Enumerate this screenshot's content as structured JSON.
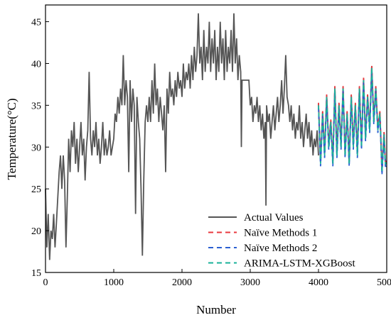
{
  "chart_data": {
    "type": "line",
    "title": "",
    "xlabel": "Number",
    "ylabel": "Temperature(°C)",
    "xlim": [
      0,
      5000
    ],
    "ylim": [
      15,
      47
    ],
    "x_ticks": [
      0,
      1000,
      2000,
      3000,
      4000,
      5000
    ],
    "y_ticks": [
      15,
      20,
      25,
      30,
      35,
      40,
      45
    ],
    "grid": false,
    "legend_position": "bottom-right",
    "series": [
      {
        "name": "Actual Values",
        "color": "#555555",
        "style": "solid",
        "points": [
          [
            0,
            25
          ],
          [
            20,
            18
          ],
          [
            40,
            22
          ],
          [
            60,
            16.5
          ],
          [
            80,
            20
          ],
          [
            100,
            19
          ],
          [
            120,
            22
          ],
          [
            140,
            18
          ],
          [
            160,
            21
          ],
          [
            180,
            24
          ],
          [
            200,
            27
          ],
          [
            220,
            29
          ],
          [
            240,
            25
          ],
          [
            260,
            29
          ],
          [
            280,
            26
          ],
          [
            300,
            18
          ],
          [
            320,
            24
          ],
          [
            340,
            31
          ],
          [
            360,
            27
          ],
          [
            380,
            32
          ],
          [
            400,
            30
          ],
          [
            420,
            33
          ],
          [
            440,
            28
          ],
          [
            460,
            31
          ],
          [
            480,
            27
          ],
          [
            500,
            30
          ],
          [
            520,
            33
          ],
          [
            540,
            29
          ],
          [
            560,
            31
          ],
          [
            580,
            26
          ],
          [
            600,
            30
          ],
          [
            620,
            32
          ],
          [
            640,
            39
          ],
          [
            660,
            31
          ],
          [
            680,
            29
          ],
          [
            700,
            32
          ],
          [
            720,
            30
          ],
          [
            740,
            33
          ],
          [
            760,
            29
          ],
          [
            780,
            31
          ],
          [
            800,
            28
          ],
          [
            820,
            30
          ],
          [
            840,
            33
          ],
          [
            860,
            29
          ],
          [
            880,
            31
          ],
          [
            900,
            29
          ],
          [
            920,
            30
          ],
          [
            940,
            32
          ],
          [
            960,
            29
          ],
          [
            980,
            30
          ],
          [
            1000,
            31
          ],
          [
            1020,
            34
          ],
          [
            1040,
            33
          ],
          [
            1060,
            36
          ],
          [
            1080,
            34
          ],
          [
            1100,
            37
          ],
          [
            1120,
            35
          ],
          [
            1140,
            41
          ],
          [
            1160,
            35
          ],
          [
            1180,
            38
          ],
          [
            1200,
            36
          ],
          [
            1220,
            27
          ],
          [
            1240,
            38
          ],
          [
            1260,
            33
          ],
          [
            1280,
            37
          ],
          [
            1300,
            35
          ],
          [
            1320,
            22
          ],
          [
            1340,
            36
          ],
          [
            1360,
            33
          ],
          [
            1380,
            31
          ],
          [
            1400,
            25
          ],
          [
            1420,
            17
          ],
          [
            1440,
            26
          ],
          [
            1460,
            33
          ],
          [
            1480,
            35
          ],
          [
            1500,
            33
          ],
          [
            1520,
            36
          ],
          [
            1540,
            33
          ],
          [
            1560,
            38
          ],
          [
            1580,
            34
          ],
          [
            1600,
            40
          ],
          [
            1620,
            35
          ],
          [
            1640,
            37
          ],
          [
            1660,
            33
          ],
          [
            1680,
            36
          ],
          [
            1700,
            34
          ],
          [
            1720,
            32
          ],
          [
            1740,
            35
          ],
          [
            1760,
            27
          ],
          [
            1780,
            37
          ],
          [
            1800,
            34
          ],
          [
            1820,
            39
          ],
          [
            1840,
            36
          ],
          [
            1860,
            37
          ],
          [
            1880,
            35
          ],
          [
            1900,
            38
          ],
          [
            1920,
            36
          ],
          [
            1940,
            39
          ],
          [
            1960,
            37
          ],
          [
            1980,
            38
          ],
          [
            2000,
            36
          ],
          [
            2020,
            40
          ],
          [
            2040,
            37
          ],
          [
            2060,
            39
          ],
          [
            2080,
            38
          ],
          [
            2100,
            40
          ],
          [
            2120,
            37
          ],
          [
            2140,
            41
          ],
          [
            2160,
            38
          ],
          [
            2180,
            42
          ],
          [
            2200,
            39
          ],
          [
            2220,
            41
          ],
          [
            2240,
            46
          ],
          [
            2260,
            40
          ],
          [
            2280,
            42
          ],
          [
            2300,
            38
          ],
          [
            2320,
            44
          ],
          [
            2340,
            39
          ],
          [
            2360,
            42
          ],
          [
            2380,
            40
          ],
          [
            2400,
            45
          ],
          [
            2420,
            39
          ],
          [
            2440,
            43
          ],
          [
            2460,
            40
          ],
          [
            2480,
            44
          ],
          [
            2500,
            38
          ],
          [
            2520,
            42
          ],
          [
            2540,
            39
          ],
          [
            2560,
            45
          ],
          [
            2580,
            40
          ],
          [
            2600,
            43
          ],
          [
            2620,
            38
          ],
          [
            2640,
            44
          ],
          [
            2660,
            39
          ],
          [
            2680,
            42
          ],
          [
            2700,
            40
          ],
          [
            2720,
            44
          ],
          [
            2740,
            39
          ],
          [
            2760,
            46
          ],
          [
            2780,
            40
          ],
          [
            2800,
            43
          ],
          [
            2820,
            38
          ],
          [
            2840,
            41
          ],
          [
            2860,
            39
          ],
          [
            2870,
            30
          ],
          [
            2880,
            38
          ],
          [
            2900,
            38
          ],
          [
            2950,
            38
          ],
          [
            2980,
            38
          ],
          [
            3000,
            35
          ],
          [
            3020,
            36
          ],
          [
            3040,
            33
          ],
          [
            3060,
            35
          ],
          [
            3080,
            34
          ],
          [
            3100,
            36
          ],
          [
            3120,
            33
          ],
          [
            3140,
            35
          ],
          [
            3160,
            32
          ],
          [
            3180,
            34
          ],
          [
            3200,
            31
          ],
          [
            3220,
            33
          ],
          [
            3230,
            23
          ],
          [
            3240,
            35
          ],
          [
            3260,
            33
          ],
          [
            3280,
            34
          ],
          [
            3300,
            31
          ],
          [
            3320,
            33
          ],
          [
            3340,
            35
          ],
          [
            3360,
            32
          ],
          [
            3380,
            34
          ],
          [
            3400,
            36
          ],
          [
            3420,
            33
          ],
          [
            3440,
            35
          ],
          [
            3460,
            38
          ],
          [
            3480,
            34
          ],
          [
            3500,
            37
          ],
          [
            3520,
            41
          ],
          [
            3540,
            36
          ],
          [
            3560,
            35
          ],
          [
            3580,
            33
          ],
          [
            3600,
            35
          ],
          [
            3620,
            32
          ],
          [
            3640,
            34
          ],
          [
            3660,
            31
          ],
          [
            3680,
            33
          ],
          [
            3700,
            32
          ],
          [
            3720,
            35
          ],
          [
            3740,
            31
          ],
          [
            3760,
            33
          ],
          [
            3780,
            30
          ],
          [
            3800,
            32
          ],
          [
            3820,
            34
          ],
          [
            3840,
            31
          ],
          [
            3860,
            33
          ],
          [
            3880,
            30
          ],
          [
            3900,
            32
          ],
          [
            3920,
            29
          ],
          [
            3940,
            31
          ],
          [
            3960,
            30
          ],
          [
            3980,
            32
          ],
          [
            4000,
            29
          ]
        ]
      },
      {
        "name": "Naïve Methods 1",
        "color": "#e8393e",
        "style": "dashed",
        "points": []
      },
      {
        "name": "Naïve Methods 2",
        "color": "#2a5fd1",
        "style": "dashed",
        "points": []
      },
      {
        "name": "ARIMA-LSTM-XGBoost",
        "color": "#19b29a",
        "style": "dashed",
        "points": [
          [
            4000,
            35
          ],
          [
            4030,
            28
          ],
          [
            4060,
            34
          ],
          [
            4090,
            29
          ],
          [
            4120,
            36
          ],
          [
            4150,
            30
          ],
          [
            4180,
            33
          ],
          [
            4210,
            28
          ],
          [
            4240,
            37
          ],
          [
            4270,
            29
          ],
          [
            4300,
            35
          ],
          [
            4330,
            30
          ],
          [
            4360,
            37
          ],
          [
            4390,
            29
          ],
          [
            4420,
            34
          ],
          [
            4450,
            28
          ],
          [
            4480,
            36
          ],
          [
            4510,
            30
          ],
          [
            4540,
            35
          ],
          [
            4570,
            29
          ],
          [
            4600,
            37
          ],
          [
            4630,
            30
          ],
          [
            4660,
            38
          ],
          [
            4690,
            31
          ],
          [
            4720,
            36
          ],
          [
            4750,
            32
          ],
          [
            4780,
            39.5
          ],
          [
            4810,
            33
          ],
          [
            4840,
            37
          ],
          [
            4870,
            32
          ],
          [
            4900,
            34
          ],
          [
            4930,
            27
          ],
          [
            4960,
            31.5
          ],
          [
            4980,
            28
          ],
          [
            5000,
            28
          ]
        ]
      }
    ]
  }
}
